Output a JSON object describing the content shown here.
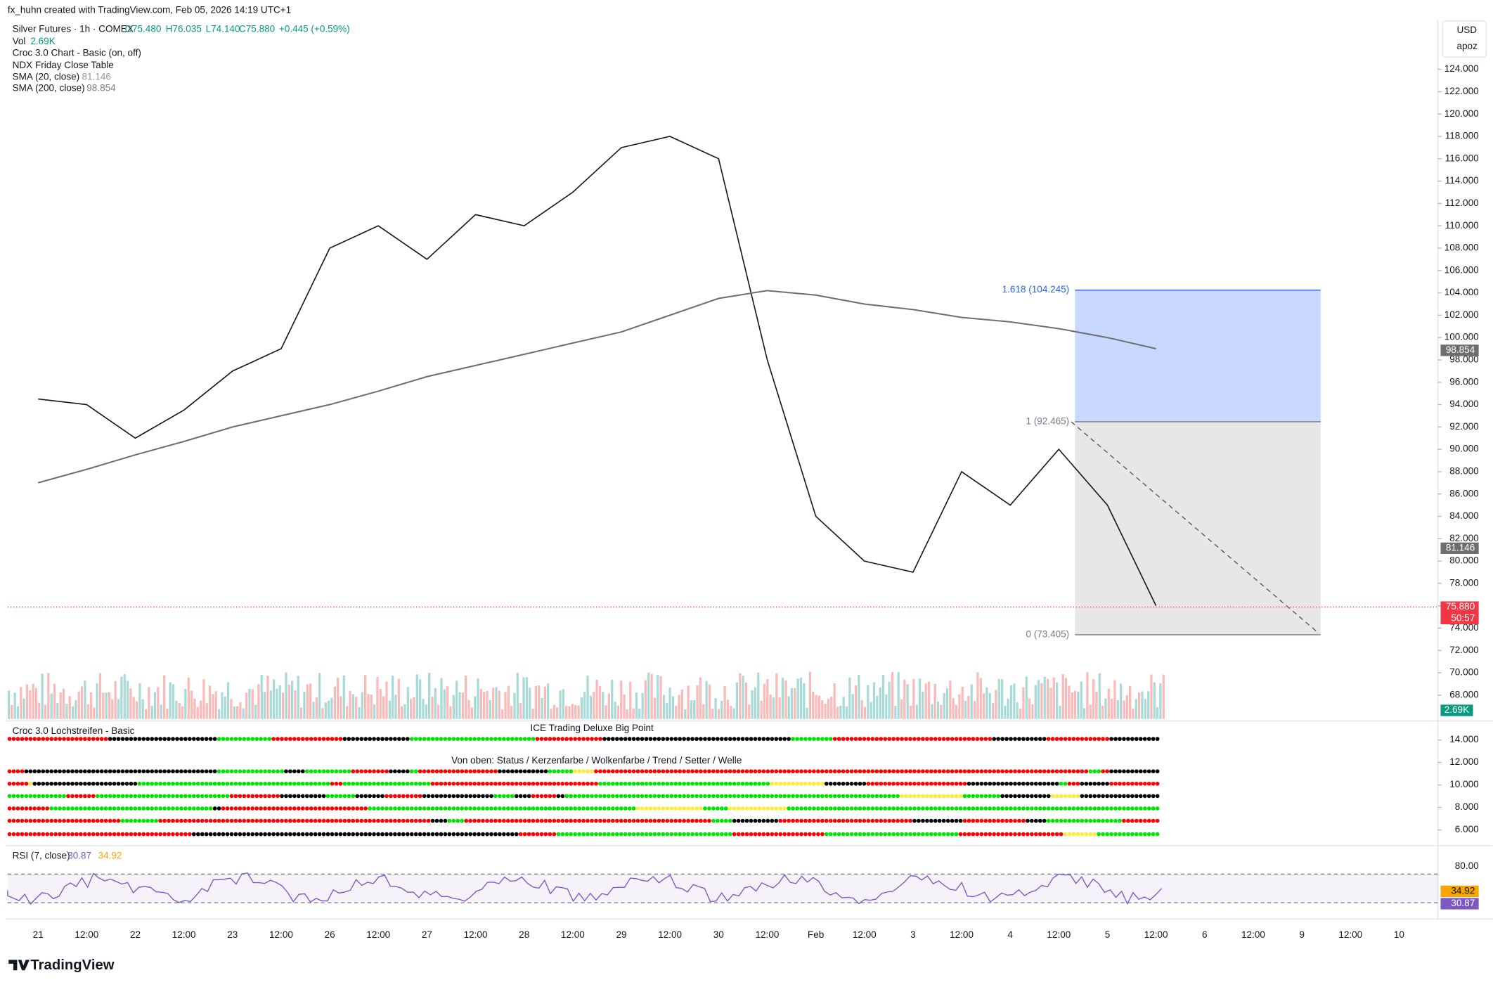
{
  "header": {
    "credit": "fx_huhn created with TradingView.com, Feb 05, 2026 14:19 UTC+1",
    "symbol": "Silver Futures · 1h · COMEX",
    "ohlc": [
      "O75.480",
      "H76.035",
      "L74.140",
      "C75.880",
      "+0.445 (+0.59%)"
    ]
  },
  "legend": [
    {
      "name": "Vol",
      "value": "2.69K"
    },
    {
      "name": "Croc 3.0 Chart - Basic (on, off)"
    },
    {
      "name": "NDX Friday Close Table"
    },
    {
      "name": "SMA (20, close)",
      "value": "81.146"
    },
    {
      "name": "SMA (200, close)",
      "value": "98.854"
    }
  ],
  "currency": "USD",
  "scale_mode": "apoz",
  "chart_data": {
    "type": "line",
    "categories": [
      "21",
      "12:00",
      "22",
      "12:00",
      "23",
      "12:00",
      "26",
      "12:00",
      "27",
      "12:00",
      "28",
      "12:00",
      "29",
      "12:00",
      "30",
      "12:00",
      "Feb",
      "12:00",
      "3",
      "12:00",
      "4",
      "12:00",
      "5",
      "12:00",
      "6",
      "12:00",
      "9",
      "12:00",
      "10"
    ],
    "series": [
      {
        "color": "#131722",
        "values": [
          94.5,
          94,
          91,
          93.5,
          97,
          99,
          108,
          110,
          107,
          111,
          110,
          113,
          117,
          118,
          116,
          98,
          84,
          80,
          79,
          88,
          85,
          90,
          85,
          76,
          null,
          null,
          null,
          null,
          null
        ]
      },
      {
        "color": "#6e6e6e",
        "values": [
          87,
          88.2,
          89.5,
          90.7,
          92,
          93,
          94,
          95.2,
          96.5,
          97.5,
          98.5,
          99.5,
          100.5,
          102,
          103.5,
          104.2,
          103.8,
          103,
          102.5,
          101.8,
          101.4,
          100.8,
          100,
          99,
          null,
          null,
          null,
          null,
          null
        ]
      }
    ],
    "ylim": [
      65.7,
      128.5
    ],
    "yticks": [
      {
        "value": 124,
        "label": "124.000"
      },
      {
        "value": 122,
        "label": "122.000"
      },
      {
        "value": 120,
        "label": "120.000"
      },
      {
        "value": 118,
        "label": "118.000"
      },
      {
        "value": 116,
        "label": "116.000"
      },
      {
        "value": 114,
        "label": "114.000"
      },
      {
        "value": 112,
        "label": "112.000"
      },
      {
        "value": 110,
        "label": "110.000"
      },
      {
        "value": 108,
        "label": "108.000"
      },
      {
        "value": 106,
        "label": "106.000"
      },
      {
        "value": 104,
        "label": "104.000"
      },
      {
        "value": 102,
        "label": "102.000"
      },
      {
        "value": 100,
        "label": "100.000"
      },
      {
        "value": 98,
        "label": "98.000"
      },
      {
        "value": 96,
        "label": "96.000"
      },
      {
        "value": 94,
        "label": "94.000"
      },
      {
        "value": 92,
        "label": "92.000"
      },
      {
        "value": 90,
        "label": "90.000"
      },
      {
        "value": 88,
        "label": "88.000"
      },
      {
        "value": 86,
        "label": "86.000"
      },
      {
        "value": 84,
        "label": "84.000"
      },
      {
        "value": 82,
        "label": "82.000"
      },
      {
        "value": 80,
        "label": "80.000"
      },
      {
        "value": 78,
        "label": "78.000"
      },
      {
        "value": 76,
        "label": "76.000"
      },
      {
        "value": 74,
        "label": "74.000"
      },
      {
        "value": 72,
        "label": "72.000"
      },
      {
        "value": 70,
        "label": "70.000"
      },
      {
        "value": 68,
        "label": "68.000"
      }
    ],
    "fib_levels": [
      {
        "label": "1.618 (104.245)",
        "value": 104.245,
        "color": "#2962ff"
      },
      {
        "label": "1 (92.465)",
        "value": 92.465,
        "color": "#787b86"
      },
      {
        "label": "0 (73.405)",
        "value": 73.405,
        "color": "#787b86"
      }
    ],
    "last_price": {
      "value": 75.88,
      "label": "75.880",
      "countdown": "50:57",
      "color": "#f23645"
    },
    "axis_labels": [
      {
        "value": 98.854,
        "label": "98.854",
        "color": "#6e6e6e"
      },
      {
        "value": 81.146,
        "label": "81.146",
        "color": "#6e6e6e"
      }
    ],
    "volume_label": "2.69K"
  },
  "croc_pane": {
    "title": "Croc 3.0 Lochstreifen - Basic",
    "subtitle": "ICE Trading Deluxe Big Point",
    "rows_caption": "Von oben: Status / Kerzenfarbe / Wolkenfarbe / Trend / Setter / Welle",
    "ylim": [
      4.6,
      15.7
    ],
    "yticks": [
      {
        "value": 14,
        "label": "14.000"
      },
      {
        "value": 12,
        "label": "12.000"
      },
      {
        "value": 10,
        "label": "10.000"
      },
      {
        "value": 8,
        "label": "8.000"
      },
      {
        "value": 6,
        "label": "6.000"
      }
    ]
  },
  "rsi_pane": {
    "title": "RSI (7, close)",
    "values": [
      "30.87",
      "34.92"
    ],
    "tick": "80.00"
  },
  "brand": "TradingView"
}
